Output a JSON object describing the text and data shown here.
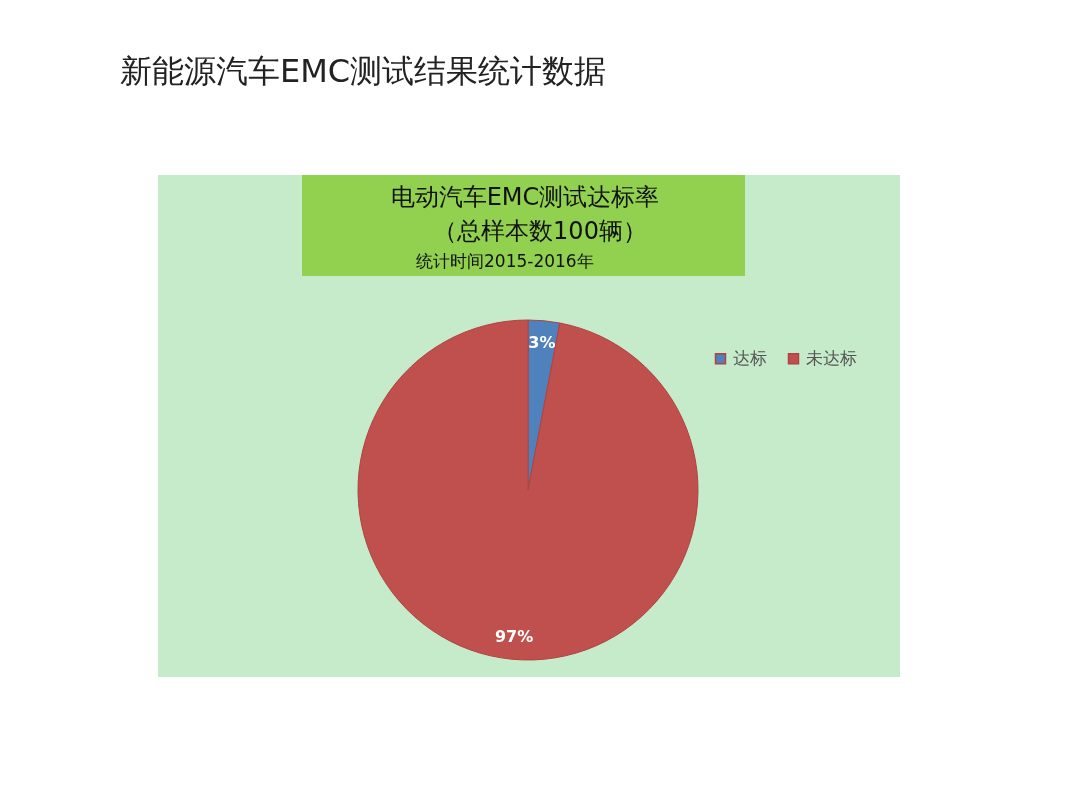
{
  "chart_data": {
    "type": "pie",
    "title": "新能源汽车EMC测试结果统计数据",
    "annotations": [
      "电动汽车EMC测试达标率",
      "（总样本数100辆）",
      "统计时间2015-2016年"
    ],
    "categories": [
      "达标",
      "未达标"
    ],
    "values": [
      3,
      97
    ],
    "colors": [
      "#4f81bd",
      "#c0504d"
    ],
    "value_labels": [
      "3%",
      "97%"
    ],
    "legend": "top right"
  }
}
